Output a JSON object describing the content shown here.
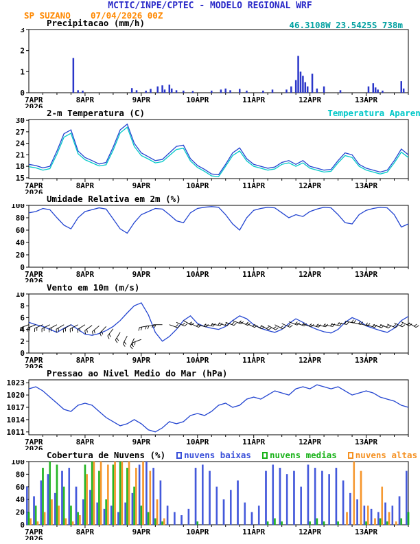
{
  "header": {
    "title": "MCTIC/INPE/CPTEC - MODELO REGIONAL WRF",
    "station": "SP SUZANO",
    "run": "07/04/2026 00Z",
    "location": "46.3108W 23.5425S 738m"
  },
  "colors": {
    "header": "#2a2ac8",
    "station": "#ff8800",
    "location": "#00a0a0",
    "line_blue": "#2244d0"
  },
  "x_axis": {
    "tick_labels": [
      "7APR",
      "8APR",
      "9APR",
      "10APR",
      "11APR",
      "12APR",
      "13APR"
    ],
    "year": "2026",
    "range_days": 6.75
  },
  "time": {
    "step_hours": 3
  },
  "chart_data": [
    {
      "id": "precipitation",
      "type": "bar",
      "title": "Precipitacao (mm/h)",
      "ylim": [
        0,
        3
      ],
      "yticks": [
        0,
        1,
        2,
        3
      ],
      "bar_color": "#2a36c9",
      "points": [
        [
          19,
          1.65
        ],
        [
          21,
          0.12
        ],
        [
          23,
          0.1
        ],
        [
          44,
          0.22
        ],
        [
          46,
          0.12
        ],
        [
          50,
          0.1
        ],
        [
          52,
          0.18
        ],
        [
          55,
          0.3
        ],
        [
          57,
          0.35
        ],
        [
          58,
          0.15
        ],
        [
          60,
          0.38
        ],
        [
          61,
          0.2
        ],
        [
          63,
          0.12
        ],
        [
          66,
          0.1
        ],
        [
          70,
          0.08
        ],
        [
          78,
          0.1
        ],
        [
          82,
          0.15
        ],
        [
          84,
          0.2
        ],
        [
          86,
          0.12
        ],
        [
          90,
          0.18
        ],
        [
          93,
          0.1
        ],
        [
          100,
          0.1
        ],
        [
          104,
          0.15
        ],
        [
          110,
          0.15
        ],
        [
          112,
          0.3
        ],
        [
          114,
          0.6
        ],
        [
          115,
          1.75
        ],
        [
          116,
          1.0
        ],
        [
          117,
          0.8
        ],
        [
          118,
          0.5
        ],
        [
          119,
          0.3
        ],
        [
          121,
          0.9
        ],
        [
          123,
          0.2
        ],
        [
          126,
          0.3
        ],
        [
          133,
          0.12
        ],
        [
          145,
          0.3
        ],
        [
          147,
          0.45
        ],
        [
          148,
          0.25
        ],
        [
          149,
          0.15
        ],
        [
          151,
          0.1
        ],
        [
          159,
          0.55
        ],
        [
          160,
          0.2
        ]
      ]
    },
    {
      "id": "temperature",
      "type": "line",
      "title": "2-m Temperatura (C)",
      "right_label": "Temperatura Aparente (C)",
      "right_label_color": "#00c8c8",
      "ylim": [
        14.8,
        30.2
      ],
      "yticks": [
        15,
        18,
        21,
        24,
        27,
        30
      ],
      "series": [
        {
          "name": "2-m Temperatura (C)",
          "color": "#2244d0",
          "values": [
            18.5,
            18.2,
            17.6,
            18.0,
            22.0,
            26.5,
            27.5,
            22.0,
            20.3,
            19.5,
            18.6,
            19.0,
            23.0,
            27.5,
            29.0,
            24.0,
            21.5,
            20.5,
            19.5,
            19.8,
            21.5,
            23.2,
            23.5,
            20.0,
            18.2,
            17.2,
            16.0,
            15.8,
            18.5,
            21.5,
            22.8,
            20.0,
            18.5,
            18.0,
            17.5,
            17.8,
            19.0,
            19.5,
            18.5,
            19.5,
            18.0,
            17.5,
            17.0,
            17.2,
            19.5,
            21.5,
            21.0,
            18.5,
            17.5,
            17.0,
            16.5,
            17.0,
            19.5,
            22.5,
            21.0
          ]
        },
        {
          "name": "Temperatura Aparente (C)",
          "color": "#00c8c8",
          "values": [
            17.9,
            17.6,
            17.0,
            17.4,
            21.2,
            25.6,
            26.6,
            21.3,
            19.7,
            18.9,
            18.1,
            18.4,
            22.2,
            26.7,
            28.2,
            23.2,
            20.8,
            19.9,
            18.9,
            19.2,
            20.8,
            22.4,
            22.7,
            19.4,
            17.7,
            16.7,
            15.5,
            15.3,
            18.0,
            20.8,
            22.0,
            19.4,
            18.0,
            17.5,
            17.0,
            17.3,
            18.5,
            18.9,
            18.0,
            18.9,
            17.5,
            17.0,
            16.5,
            16.7,
            18.9,
            20.8,
            20.3,
            18.0,
            17.0,
            16.5,
            16.0,
            16.5,
            18.9,
            21.7,
            20.3
          ]
        }
      ]
    },
    {
      "id": "relative-humidity",
      "type": "line",
      "title": "Umidade Relativa em 2m (%)",
      "ylim": [
        0,
        100
      ],
      "yticks": [
        0,
        20,
        40,
        60,
        80,
        100
      ],
      "series": [
        {
          "name": "Umidade Relativa em 2m (%)",
          "color": "#2244d0",
          "values": [
            88,
            90,
            95,
            93,
            80,
            68,
            62,
            80,
            90,
            93,
            96,
            94,
            78,
            62,
            55,
            72,
            85,
            90,
            95,
            94,
            85,
            75,
            72,
            88,
            95,
            97,
            98,
            97,
            85,
            70,
            60,
            80,
            92,
            95,
            97,
            96,
            88,
            80,
            85,
            82,
            90,
            94,
            97,
            96,
            85,
            72,
            70,
            85,
            92,
            95,
            97,
            96,
            85,
            65,
            70
          ]
        }
      ]
    },
    {
      "id": "wind",
      "type": "wind",
      "title": "Vento em 10m (m/s)",
      "ylim": [
        0,
        10
      ],
      "yticks": [
        0,
        2,
        4,
        6,
        8,
        10
      ],
      "series": [
        {
          "name": "Vento em 10m (m/s)",
          "color": "#2244d0",
          "values": [
            5.2,
            4.8,
            4.5,
            4.0,
            3.5,
            4.2,
            4.8,
            4.0,
            3.2,
            3.0,
            3.3,
            3.8,
            4.5,
            5.5,
            6.8,
            8.0,
            8.5,
            6.5,
            3.5,
            2.0,
            2.8,
            4.0,
            5.5,
            6.3,
            5.0,
            4.5,
            4.2,
            4.0,
            4.5,
            5.5,
            6.3,
            5.8,
            4.8,
            4.2,
            3.8,
            3.5,
            4.0,
            5.0,
            5.8,
            5.2,
            4.5,
            4.0,
            3.6,
            3.4,
            4.0,
            5.2,
            6.0,
            5.5,
            4.6,
            4.2,
            3.8,
            3.5,
            4.2,
            5.5,
            6.2
          ]
        }
      ],
      "barbs": {
        "color": "#000000",
        "y": [
          4.8,
          4.8,
          4.8,
          4.8,
          4.8,
          4.8,
          4.8,
          4.8,
          4.8,
          4.7,
          4.6,
          4.5,
          4.1,
          3.5,
          2.9,
          2.5,
          2.3,
          4.6,
          4.7,
          4.8,
          4.8,
          5.2,
          5.5,
          5.0,
          4.8,
          4.8,
          4.9,
          5.0,
          5.2,
          5.5,
          5.3,
          5.0,
          4.8,
          4.7,
          4.7,
          4.8,
          5.0,
          5.3,
          5.1,
          4.9,
          4.8,
          4.8,
          4.8,
          4.9,
          5.1,
          5.4,
          5.2,
          5.0,
          4.8,
          4.8,
          4.8,
          4.9,
          5.1,
          5.3,
          5.1
        ],
        "angle_deg": [
          200,
          202,
          204,
          206,
          208,
          210,
          210,
          208,
          212,
          216,
          220,
          226,
          232,
          238,
          242,
          244,
          200,
          190,
          185,
          180,
          340,
          335,
          330,
          335,
          345,
          350,
          350,
          345,
          340,
          338,
          336,
          334,
          332,
          330,
          330,
          332,
          335,
          338,
          340,
          342,
          344,
          346,
          348,
          350,
          350,
          348,
          346,
          344,
          342,
          340,
          338,
          336,
          334,
          332,
          330
        ]
      }
    },
    {
      "id": "pressure",
      "type": "line",
      "title": "Pressao ao Nivel Medio do Mar (hPa)",
      "ylim": [
        1010.3,
        1023.7
      ],
      "yticks": [
        1011,
        1014,
        1017,
        1020,
        1023
      ],
      "series": [
        {
          "name": "Pressao ao Nivel Medio do Mar (hPa)",
          "color": "#2244d0",
          "values": [
            1021.5,
            1022,
            1021,
            1019.5,
            1018,
            1016.5,
            1016,
            1017.5,
            1018,
            1017.5,
            1016,
            1014.5,
            1013.5,
            1012.5,
            1013,
            1014,
            1013,
            1011.5,
            1011,
            1012,
            1013.5,
            1013,
            1013.5,
            1015,
            1015.5,
            1015,
            1016,
            1017.5,
            1018,
            1017,
            1017.5,
            1019,
            1019.5,
            1019,
            1020,
            1021,
            1020.5,
            1020,
            1021.5,
            1022,
            1021.5,
            1022.5,
            1022,
            1021.5,
            1022,
            1021,
            1020,
            1020.5,
            1021,
            1020.5,
            1019.5,
            1019,
            1018.5,
            1017.5,
            1017
          ]
        }
      ]
    },
    {
      "id": "cloud-cover",
      "type": "bars-grouped",
      "title": "Cobertura de Nuvens (%)",
      "ylim": [
        0,
        100
      ],
      "yticks": [
        0,
        20,
        40,
        60,
        80,
        100
      ],
      "legend": [
        {
          "label": "nuvens baixas",
          "color": "#3a50d9"
        },
        {
          "label": "nuvens medias",
          "color": "#19b219"
        },
        {
          "label": "nuvens altas",
          "color": "#f59122"
        }
      ],
      "series": [
        {
          "name": "nuvens baixas",
          "color": "#3a50d9",
          "values": [
            60,
            45,
            70,
            80,
            50,
            85,
            90,
            60,
            40,
            55,
            35,
            25,
            30,
            20,
            35,
            50,
            95,
            100,
            90,
            70,
            30,
            20,
            15,
            25,
            90,
            95,
            85,
            60,
            40,
            55,
            70,
            35,
            20,
            30,
            85,
            95,
            90,
            80,
            85,
            60,
            95,
            90,
            85,
            80,
            90,
            70,
            50,
            40,
            30,
            25,
            20,
            35,
            30,
            45,
            85
          ]
        },
        {
          "name": "nuvens medias",
          "color": "#19b219",
          "values": [
            20,
            30,
            90,
            100,
            95,
            60,
            30,
            20,
            95,
            100,
            85,
            40,
            95,
            100,
            90,
            60,
            30,
            20,
            10,
            5,
            0,
            0,
            0,
            0,
            5,
            0,
            0,
            0,
            0,
            0,
            0,
            0,
            0,
            0,
            5,
            10,
            5,
            0,
            0,
            0,
            5,
            10,
            5,
            0,
            5,
            0,
            0,
            0,
            5,
            0,
            10,
            5,
            0,
            10,
            20
          ]
        },
        {
          "name": "nuvens altas",
          "color": "#f59122",
          "values": [
            10,
            5,
            20,
            40,
            30,
            10,
            5,
            15,
            80,
            100,
            100,
            95,
            100,
            100,
            100,
            90,
            100,
            85,
            40,
            10,
            0,
            0,
            0,
            0,
            0,
            0,
            0,
            0,
            0,
            0,
            0,
            0,
            0,
            0,
            0,
            0,
            0,
            0,
            0,
            0,
            0,
            0,
            0,
            0,
            0,
            20,
            100,
            85,
            30,
            10,
            60,
            20,
            5,
            0,
            0
          ]
        }
      ]
    }
  ]
}
